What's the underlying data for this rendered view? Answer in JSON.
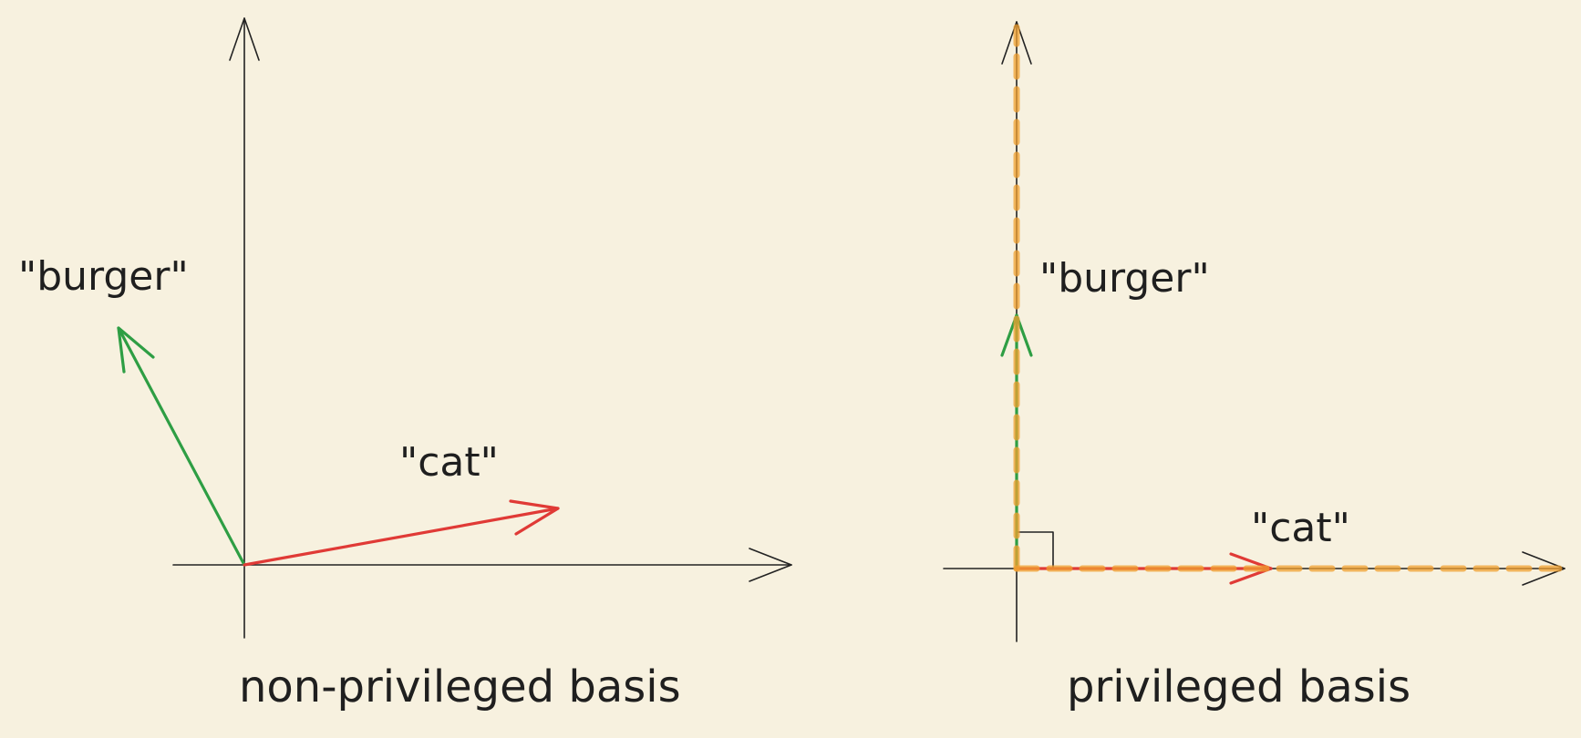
{
  "colors": {
    "background": "#f7f1df",
    "axis": "#222222",
    "burger_vector": "#2e9e44",
    "cat_vector": "#e03a36",
    "privileged_dashed": "#f0a030"
  },
  "left_panel": {
    "caption": "non-privileged basis",
    "burger_label": "\"burger\"",
    "cat_label": "\"cat\""
  },
  "right_panel": {
    "caption": "privileged basis",
    "burger_label": "\"burger\"",
    "cat_label": "\"cat\""
  }
}
